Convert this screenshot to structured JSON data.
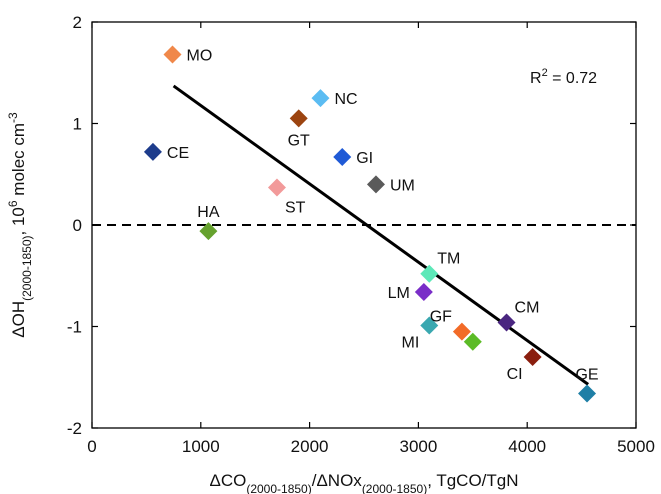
{
  "chart_data": {
    "type": "scatter",
    "xlabel": {
      "parts": [
        {
          "text": "ΔCO",
          "sub": false
        },
        {
          "text": "(2000-1850)",
          "sub": true
        },
        {
          "text": "/ΔNOx",
          "sub": false
        },
        {
          "text": "(2000-1850)",
          "sub": true
        },
        {
          "text": ", TgCO/TgN",
          "sub": false
        }
      ]
    },
    "ylabel": {
      "parts": [
        {
          "text": "ΔOH",
          "sub": false
        },
        {
          "text": "(2000-1850)",
          "sub": true
        },
        {
          "text": ", 10",
          "sub": false
        },
        {
          "text": "6",
          "sup": true
        },
        {
          "text": " molec cm",
          "sub": false
        },
        {
          "text": "-3",
          "sup": true
        }
      ]
    },
    "xlim": [
      0,
      5000
    ],
    "ylim": [
      -2,
      2
    ],
    "x_ticks": [
      0,
      1000,
      2000,
      3000,
      4000,
      5000
    ],
    "y_ticks": [
      -2,
      -1,
      0,
      1,
      2
    ],
    "x_tick_labels": [
      "0",
      "1000",
      "2000",
      "3000",
      "4000",
      "5000"
    ],
    "y_tick_labels": [
      "-2",
      "-1",
      "0",
      "1",
      "2"
    ],
    "annotation": {
      "prefix": "R",
      "sup": "2",
      "suffix": " = 0.72"
    },
    "reference_line": {
      "y": 0,
      "style": "dashed"
    },
    "fit_line": {
      "x": [
        750,
        4560
      ],
      "y": [
        1.37,
        -1.57
      ]
    },
    "points": [
      {
        "label": "MO",
        "x": 740,
        "y": 1.68,
        "color": "#f0884a",
        "label_pos": "right"
      },
      {
        "label": "NC",
        "x": 2100,
        "y": 1.25,
        "color": "#5bbcf2",
        "label_pos": "right"
      },
      {
        "label": "GT",
        "x": 1900,
        "y": 1.05,
        "color": "#9c4410",
        "label_pos": "below"
      },
      {
        "label": "CE",
        "x": 560,
        "y": 0.72,
        "color": "#1d3c8c",
        "label_pos": "right"
      },
      {
        "label": "GI",
        "x": 2300,
        "y": 0.67,
        "color": "#1f5ad6",
        "label_pos": "right"
      },
      {
        "label": "UM",
        "x": 2610,
        "y": 0.4,
        "color": "#5a5a5a",
        "label_pos": "right"
      },
      {
        "label": "ST",
        "x": 1700,
        "y": 0.37,
        "color": "#f29a9a",
        "label_pos": "below-right"
      },
      {
        "label": "HA",
        "x": 1070,
        "y": -0.06,
        "color": "#66a22e",
        "label_pos": "above"
      },
      {
        "label": "TM",
        "x": 3100,
        "y": -0.48,
        "color": "#5de8b8",
        "label_pos": "above-right"
      },
      {
        "label": "LM",
        "x": 3050,
        "y": -0.66,
        "color": "#7a2ec8",
        "label_pos": "left"
      },
      {
        "label": "CM",
        "x": 3810,
        "y": -0.96,
        "color": "#4a2680",
        "label_pos": "above-right"
      },
      {
        "label": "MI",
        "x": 3100,
        "y": -0.99,
        "color": "#3aa8b0",
        "label_pos": "below-left"
      },
      {
        "label": "GF",
        "x": 3400,
        "y": -1.05,
        "color": "#f26b28",
        "label_pos": "above-left"
      },
      {
        "label": "",
        "x": 3500,
        "y": -1.15,
        "color": "#5cbb26",
        "label_pos": "none"
      },
      {
        "label": "CI",
        "x": 4050,
        "y": -1.3,
        "color": "#8a1e0e",
        "label_pos": "below-left"
      },
      {
        "label": "GE",
        "x": 4550,
        "y": -1.66,
        "color": "#1f7fa6",
        "label_pos": "above"
      }
    ]
  }
}
